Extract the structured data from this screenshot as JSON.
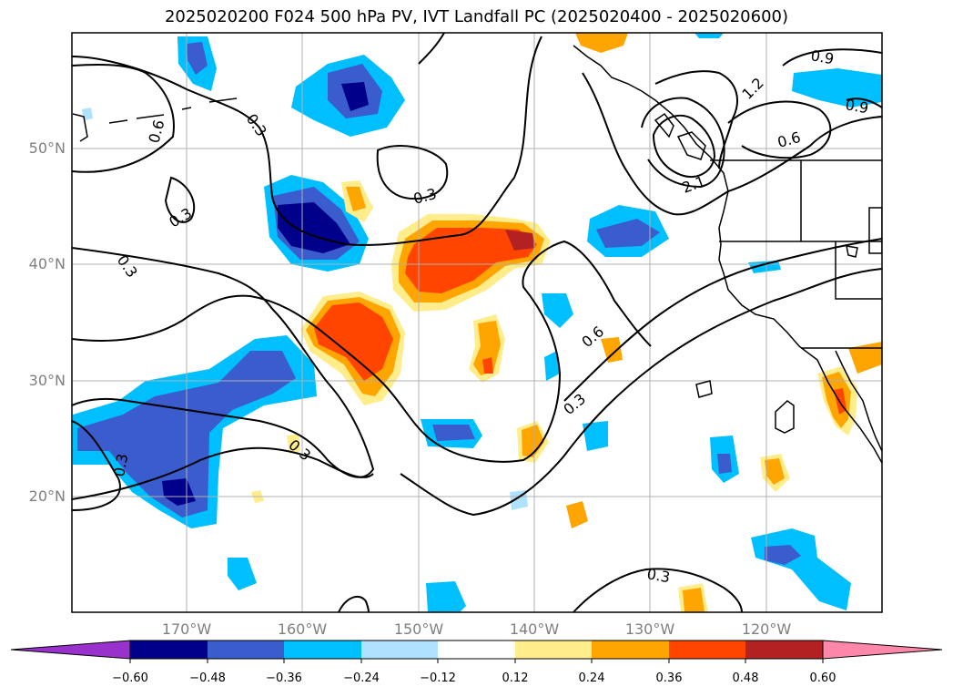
{
  "title": "2025020200 F024 500 hPa PV, IVT Landfall PC (2025020400 - 2025020600)",
  "lat_labels": [
    "50°N",
    "40°N",
    "30°N",
    "20°N"
  ],
  "lon_labels": [
    "170°W",
    "160°W",
    "150°W",
    "140°W",
    "130°W",
    "120°W"
  ],
  "colorbar": {
    "ticks": [
      "−0.60",
      "−0.48",
      "−0.36",
      "−0.24",
      "−0.12",
      "0.12",
      "0.24",
      "0.36",
      "0.48",
      "0.60"
    ],
    "colors": [
      "#9932cc",
      "#00008b",
      "#3a5ccc",
      "#00bfff",
      "#b0e2ff",
      "#ffffff",
      "#ffec8b",
      "#ffa500",
      "#ff4500",
      "#b22222",
      "#ff88aa"
    ]
  },
  "contour_labels": [
    "0.9",
    "1.2",
    "0.9",
    "0.6",
    "2.1",
    "0.3",
    "0.6",
    "0.3",
    "0.3",
    "0.3",
    "0.6",
    "0.3",
    "0.3",
    "0.3",
    "0.3"
  ]
}
